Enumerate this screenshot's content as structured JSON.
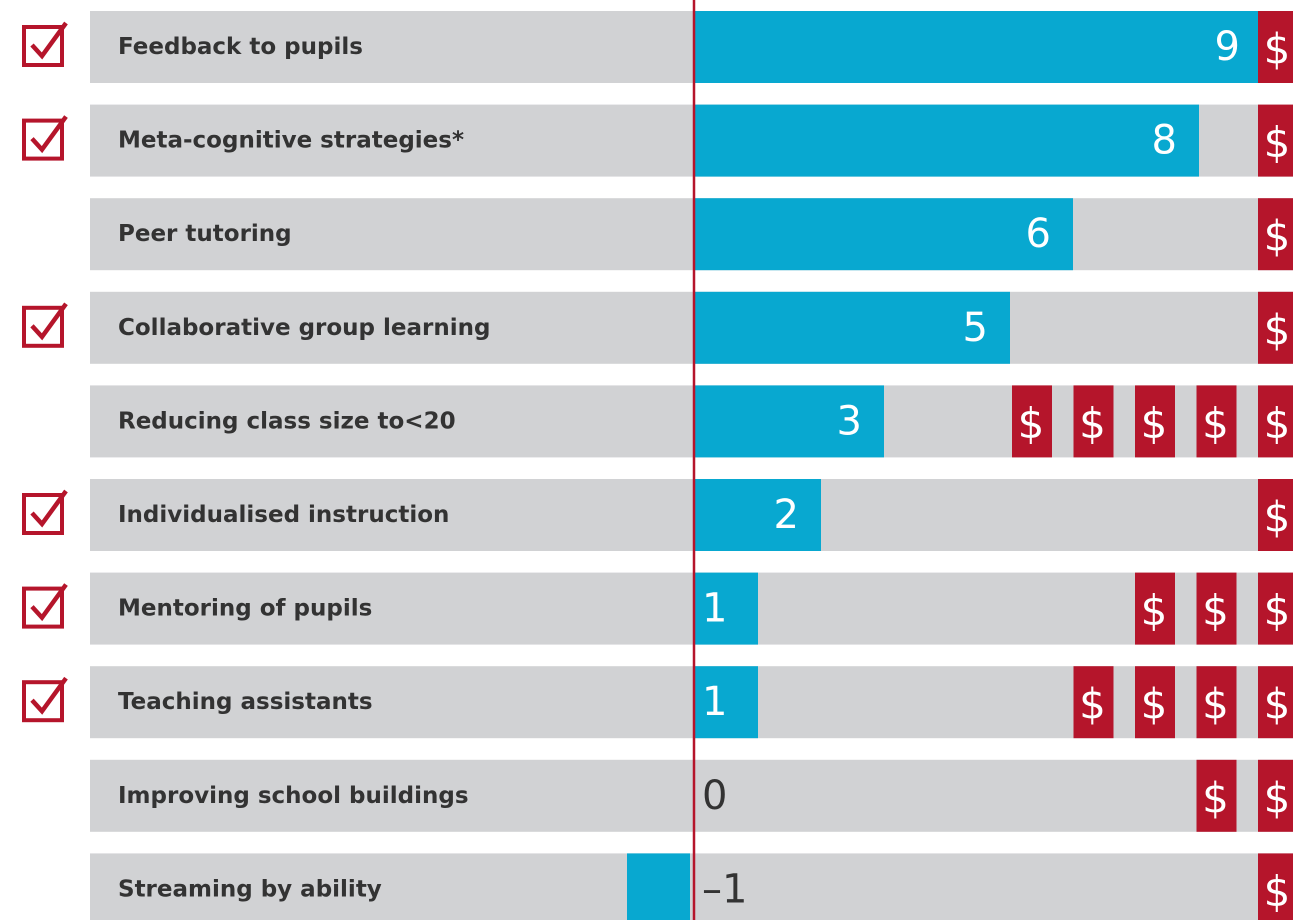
{
  "chart_data": {
    "type": "bar",
    "categories": [
      "Feedback to pupils",
      "Meta-cognitive strategies*",
      "Peer tutoring",
      "Collaborative group learning",
      "Reducing class size to<20",
      "Individualised instruction",
      "Mentoring of pupils",
      "Teaching assistants",
      "Improving school buildings",
      "Streaming by ability"
    ],
    "values": [
      9,
      8,
      6,
      5,
      3,
      2,
      1,
      1,
      0,
      -1
    ],
    "value_labels": [
      "9",
      "8",
      "6",
      "5",
      "3",
      "2",
      "1",
      "1",
      "0",
      "–1"
    ],
    "color": "#08a8d0",
    "checked": [
      true,
      true,
      false,
      true,
      false,
      true,
      true,
      true,
      false,
      false
    ],
    "check_color": "#b5152b",
    "costs": [
      1,
      1,
      1,
      1,
      5,
      1,
      3,
      4,
      2,
      1
    ],
    "cost_symbol": "$",
    "cost_color": "#b5152b"
  }
}
